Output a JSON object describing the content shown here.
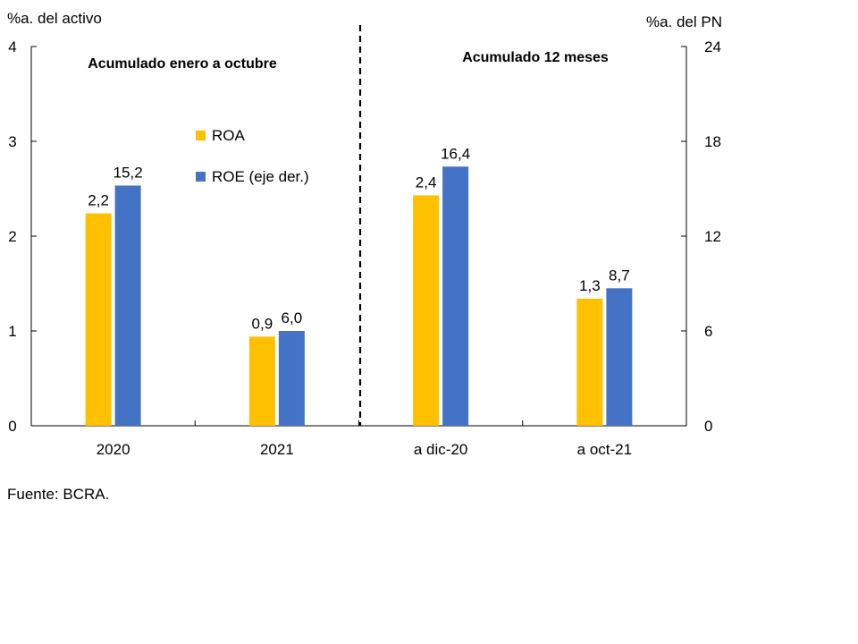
{
  "chart_data": {
    "type": "bar",
    "left_axis_label": "%a. del activo",
    "right_axis_label": "%a. del PN",
    "categories": [
      "2020",
      "2021",
      "a dic-20",
      "a oct-21"
    ],
    "section_labels": [
      "Acumulado enero a octubre",
      "Acumulado 12 meses"
    ],
    "ylim_left": [
      0,
      4
    ],
    "yticks_left": [
      "0",
      "1",
      "2",
      "3",
      "4"
    ],
    "ylim_right": [
      0,
      24
    ],
    "yticks_right": [
      "0",
      "6",
      "12",
      "18",
      "24"
    ],
    "series": [
      {
        "name": "ROA",
        "axis": "left",
        "color": "#FFC000",
        "values": [
          2.24,
          0.94,
          2.43,
          1.34
        ],
        "labels": [
          "2,2",
          "0,9",
          "2,4",
          "1,3"
        ]
      },
      {
        "name": "ROE (eje der.)",
        "axis": "right",
        "color": "#4472C4",
        "values": [
          15.2,
          6.0,
          16.4,
          8.7
        ],
        "labels": [
          "15,2",
          "6,0",
          "16,4",
          "8,7"
        ]
      }
    ],
    "legend_position": "upper-left inside plot",
    "grid": false
  },
  "source_note": "Fuente: BCRA."
}
